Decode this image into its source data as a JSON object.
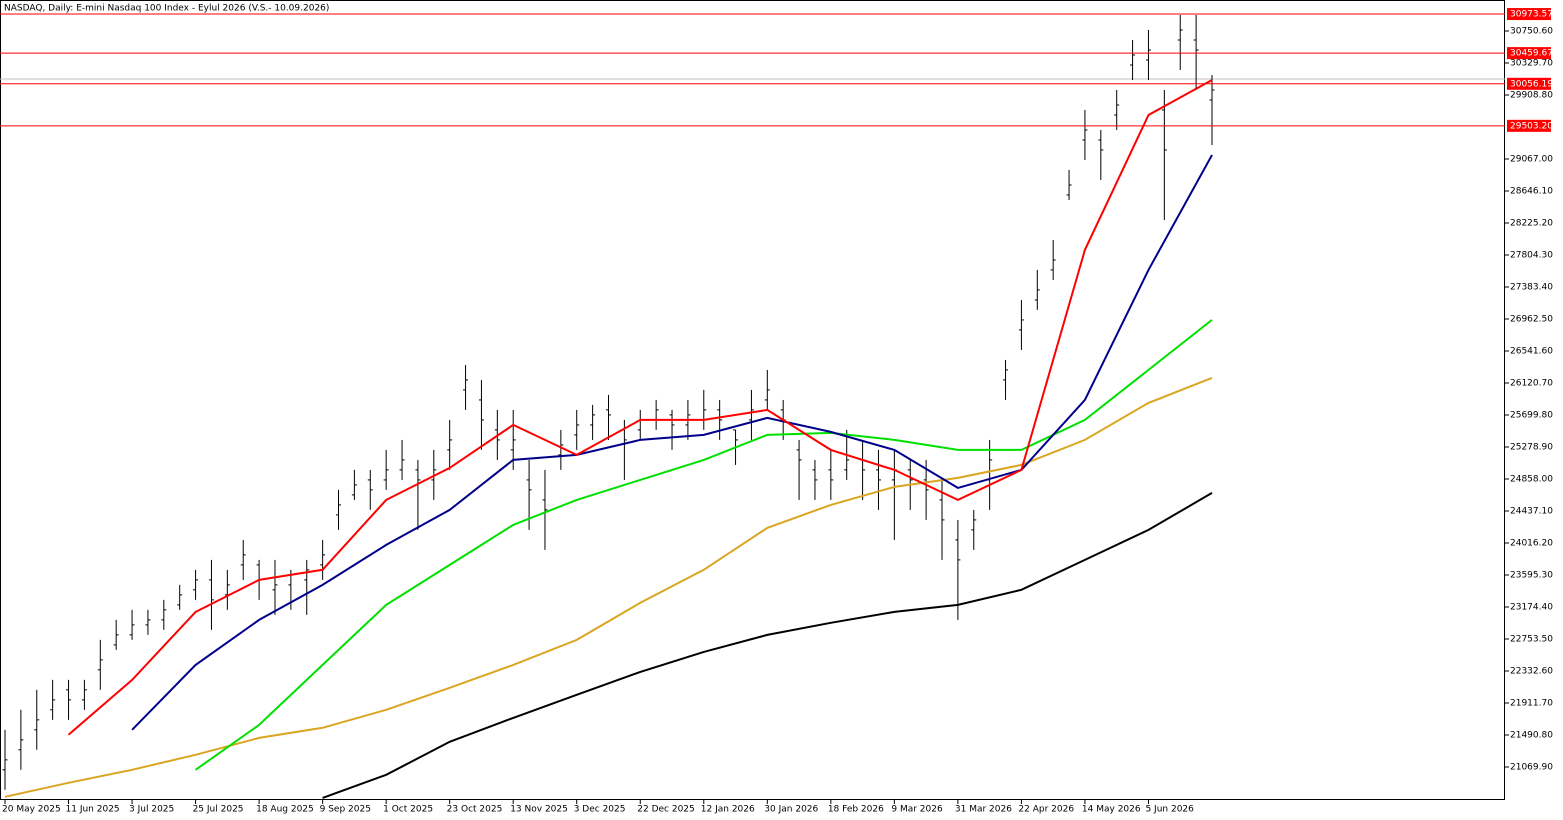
{
  "chart_data": {
    "type": "ohlc",
    "title": "NASDAQ, Daily:  E-mini Nasdaq 100 Index - Eylul 2026 (V.S.- 10.09.2026)",
    "xlim": [
      -1.26,
      377.8
    ],
    "ylim": [
      20635.8,
      31158.3
    ],
    "bar_color": "#000000",
    "yticks": [
      {
        "value": 21069.9,
        "label": "21069.90"
      },
      {
        "value": 21490.8,
        "label": "21490.80"
      },
      {
        "value": 21911.7,
        "label": "21911.70"
      },
      {
        "value": 22332.6,
        "label": "22332.60"
      },
      {
        "value": 22753.5,
        "label": "22753.50"
      },
      {
        "value": 23174.4,
        "label": "23174.40"
      },
      {
        "value": 23595.3,
        "label": "23595.30"
      },
      {
        "value": 24016.2,
        "label": "24016.20"
      },
      {
        "value": 24437.1,
        "label": "24437.10"
      },
      {
        "value": 24858,
        "label": "24858.00"
      },
      {
        "value": 25278.9,
        "label": "25278.90"
      },
      {
        "value": 25699.8,
        "label": "25699.80"
      },
      {
        "value": 26120.7,
        "label": "26120.70"
      },
      {
        "value": 26541.6,
        "label": "26541.60"
      },
      {
        "value": 26962.5,
        "label": "26962.50"
      },
      {
        "value": 27383.4,
        "label": "27383.40"
      },
      {
        "value": 27804.3,
        "label": "27804.30"
      },
      {
        "value": 28225.2,
        "label": "28225.20"
      },
      {
        "value": 28646.1,
        "label": "28646.10"
      },
      {
        "value": 29067,
        "label": "29067.00"
      },
      {
        "value": 29908.8,
        "label": "29908.80"
      },
      {
        "value": 30329.7,
        "label": "30329.70"
      },
      {
        "value": 30750.6,
        "label": "30750.60"
      }
    ],
    "xticks": [
      {
        "value": 0,
        "label": "20 May 2025"
      },
      {
        "value": 16,
        "label": "11 Jun 2025"
      },
      {
        "value": 32,
        "label": "3 Jul 2025"
      },
      {
        "value": 48,
        "label": "25 Jul 2025"
      },
      {
        "value": 64,
        "label": "18 Aug 2025"
      },
      {
        "value": 80,
        "label": "9 Sep 2025"
      },
      {
        "value": 96,
        "label": "1 Oct 2025"
      },
      {
        "value": 112,
        "label": "23 Oct 2025"
      },
      {
        "value": 128,
        "label": "13 Nov 2025"
      },
      {
        "value": 144,
        "label": "3 Dec 2025"
      },
      {
        "value": 160,
        "label": "22 Dec 2025"
      },
      {
        "value": 176,
        "label": "12 Jan 2026"
      },
      {
        "value": 192,
        "label": "30 Jan 2026"
      },
      {
        "value": 208,
        "label": "18 Feb 2026"
      },
      {
        "value": 224,
        "label": "9 Mar 2026"
      },
      {
        "value": 240,
        "label": "31 Mar 2026"
      },
      {
        "value": 256,
        "label": "22 Apr 2026"
      },
      {
        "value": 272,
        "label": "14 May 2026"
      },
      {
        "value": 288,
        "label": "5 Jun 2026"
      }
    ],
    "levels": [
      {
        "value": 30973.57,
        "label": "30973.57",
        "color": "#ff0000"
      },
      {
        "value": 30459.67,
        "label": "30459.67",
        "color": "#ff0000"
      },
      {
        "value": 30056.19,
        "label": "30056.19",
        "color": "#ff0000"
      },
      {
        "value": 29503.2,
        "label": "29503.20",
        "color": "#ff0000"
      }
    ],
    "current_price": 30119,
    "current_price_color": "#c0c0c0",
    "ohlc": {
      "x": [
        0,
        4,
        8,
        12,
        16,
        20,
        24,
        28,
        32,
        36,
        40,
        44,
        48,
        52,
        56,
        60,
        64,
        68,
        72,
        76,
        80,
        84,
        88,
        92,
        96,
        100,
        104,
        108,
        112,
        116,
        120,
        124,
        128,
        132,
        136,
        140,
        144,
        148,
        152,
        156,
        160,
        164,
        168,
        172,
        176,
        180,
        184,
        188,
        192,
        196,
        200,
        204,
        208,
        212,
        216,
        220,
        224,
        228,
        232,
        236,
        240,
        244,
        248,
        252,
        256,
        260,
        264,
        268,
        272,
        276,
        280,
        284,
        288,
        292,
        296,
        300,
        304
      ],
      "open": [
        21033,
        21296,
        21559,
        21822,
        22085,
        21953,
        22348,
        22676,
        22808,
        22939,
        23005,
        23202,
        23400,
        23531,
        23334,
        23728,
        23728,
        23400,
        23465,
        23531,
        23728,
        24386,
        24649,
        24846,
        24846,
        24978,
        24978,
        24846,
        25241,
        26030,
        25898,
        25504,
        25241,
        24846,
        24583,
        25175,
        25438,
        25569,
        25767,
        25504,
        25504,
        25635,
        25701,
        25569,
        25635,
        25767,
        25504,
        25635,
        25898,
        25767,
        25241,
        24978,
        24978,
        24978,
        25109,
        24978,
        24846,
        24978,
        24846,
        24583,
        24057,
        24189,
        24846,
        26161,
        26819,
        27213,
        27608,
        28594,
        29317,
        29317,
        29646,
        30303,
        30369,
        29712,
        30632,
        30632,
        29843
      ],
      "high": [
        21559,
        21822,
        22085,
        22216,
        22216,
        22216,
        22742,
        23005,
        23137,
        23137,
        23268,
        23465,
        23663,
        23794,
        23663,
        24057,
        23794,
        23794,
        23663,
        23794,
        24057,
        24715,
        24978,
        24978,
        25241,
        25372,
        25109,
        25241,
        25635,
        26358,
        26161,
        25767,
        25767,
        25109,
        24978,
        25504,
        25767,
        25832,
        25964,
        25635,
        25767,
        25898,
        25767,
        25898,
        26030,
        25898,
        25504,
        26030,
        26293,
        25898,
        25372,
        25109,
        25241,
        25504,
        25372,
        25241,
        25241,
        25109,
        25109,
        24846,
        24320,
        24452,
        25372,
        26424,
        27213,
        27608,
        28002,
        28923,
        29712,
        29449,
        29975,
        30632,
        30764,
        29975,
        30961,
        30961,
        30172
      ],
      "low": [
        20770,
        21033,
        21296,
        21690,
        21690,
        21822,
        22085,
        22611,
        22742,
        22808,
        22874,
        23137,
        23268,
        22874,
        23137,
        23531,
        23268,
        23071,
        23137,
        23071,
        23531,
        24189,
        24583,
        24452,
        24715,
        24846,
        24189,
        24583,
        24978,
        25767,
        25241,
        25109,
        24978,
        24189,
        23926,
        24978,
        25241,
        25372,
        25372,
        24846,
        25372,
        25504,
        25241,
        25372,
        25504,
        25372,
        25043,
        25372,
        25767,
        25372,
        24583,
        24583,
        24583,
        24846,
        24583,
        24452,
        24057,
        24452,
        24320,
        23794,
        23005,
        23926,
        24452,
        25898,
        26556,
        27082,
        27476,
        28528,
        29054,
        28791,
        29449,
        30106,
        30106,
        28265,
        30238,
        29975,
        29251
      ],
      "close": [
        21164,
        21427,
        21690,
        21953,
        21953,
        22085,
        22479,
        22808,
        22939,
        23005,
        23137,
        23334,
        23531,
        23268,
        23465,
        23860,
        23531,
        23465,
        23597,
        23663,
        23860,
        24517,
        24780,
        24715,
        24978,
        25109,
        24846,
        24978,
        25372,
        26161,
        25635,
        25372,
        25372,
        24715,
        24452,
        25306,
        25569,
        25701,
        25701,
        25372,
        25635,
        25767,
        25569,
        25701,
        25767,
        25635,
        25372,
        25767,
        26030,
        25635,
        25109,
        24846,
        24846,
        25109,
        24978,
        24846,
        24978,
        24846,
        24715,
        24320,
        23794,
        24320,
        25109,
        26293,
        26950,
        27345,
        27739,
        28725,
        29449,
        29186,
        29777,
        30435,
        30500,
        29186,
        30764,
        30500,
        29975
      ]
    },
    "lines_x": [
      0,
      16,
      32,
      48,
      64,
      80,
      96,
      112,
      128,
      144,
      160,
      176,
      192,
      208,
      224,
      240,
      256,
      272,
      288,
      304
    ],
    "lines": [
      {
        "color": "#000000",
        "values": [
          null,
          null,
          null,
          null,
          null,
          20664,
          20967,
          21401,
          21716,
          22019,
          22321,
          22584,
          22808,
          22966,
          23110,
          23202,
          23400,
          23794,
          24189,
          24675
        ]
      },
      {
        "color": "#daa520",
        "values": [
          20678,
          20862,
          21033,
          21230,
          21453,
          21585,
          21822,
          22111,
          22413,
          22742,
          23229,
          23663,
          24215,
          24517,
          24754,
          24872,
          25043,
          25372,
          25859,
          26188
        ]
      },
      {
        "color": "#00e000",
        "values": [
          null,
          null,
          null,
          21033,
          21624,
          22413,
          23202,
          23728,
          24254,
          24583,
          24846,
          25109,
          25438,
          25464,
          25372,
          25241,
          25241,
          25635,
          26293,
          26950
        ]
      },
      {
        "color": "#00008b",
        "values": [
          null,
          null,
          21559,
          22413,
          23005,
          23465,
          23991,
          24452,
          25109,
          25175,
          25372,
          25438,
          25661,
          25477,
          25241,
          24741,
          24978,
          25898,
          27608,
          29120
        ]
      },
      {
        "color": "#ff0000",
        "values": [
          null,
          21493,
          22216,
          23110,
          23531,
          23663,
          24583,
          25004,
          25569,
          25175,
          25635,
          25635,
          25767,
          25241,
          24978,
          24583,
          24978,
          27871,
          29646,
          30106
        ]
      }
    ]
  }
}
